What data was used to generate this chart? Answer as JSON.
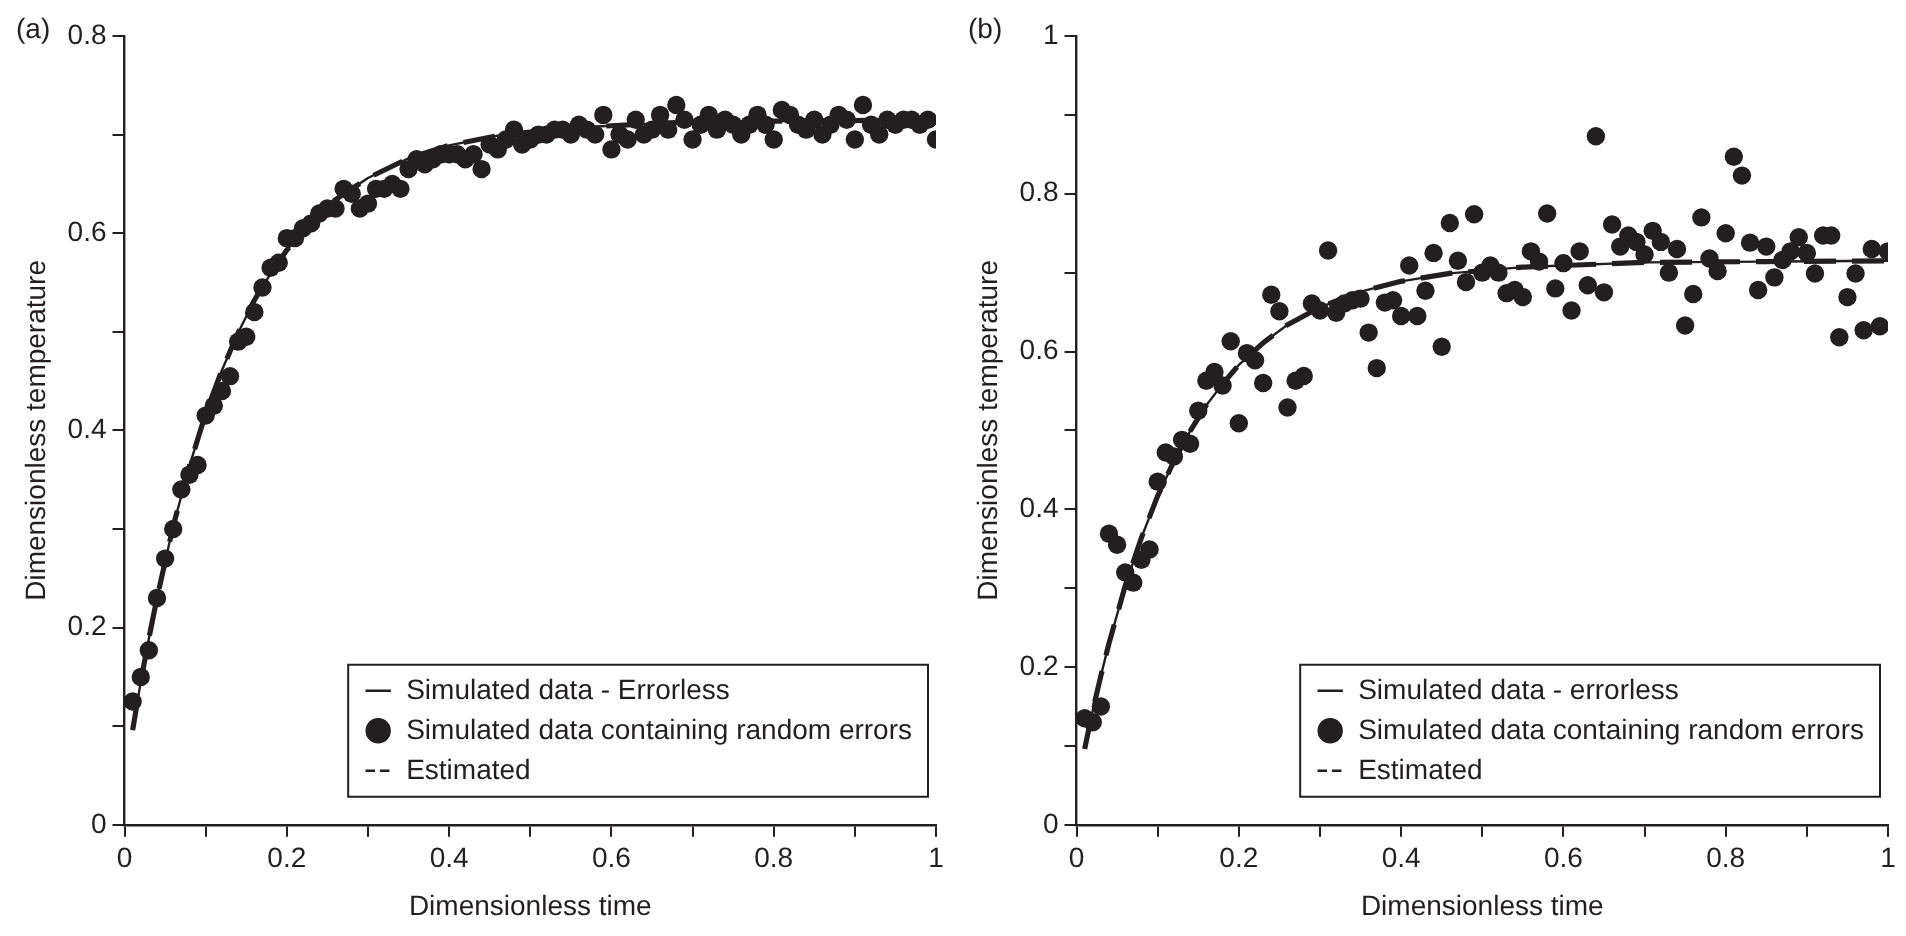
{
  "chart_data": [
    {
      "type": "line",
      "title": "(a)",
      "xlabel": "Dimensionless time",
      "ylabel": "Dimensionless temperature",
      "xlim": [
        0,
        1
      ],
      "ylim": [
        0,
        0.8
      ],
      "xticks": [
        0,
        {
          "value": 0.1,
          "label": null
        },
        0.2,
        {
          "value": 0.3,
          "label": null
        },
        0.4,
        {
          "value": 0.5,
          "label": null
        },
        0.6,
        {
          "value": 0.7,
          "label": null
        },
        0.8,
        {
          "value": 0.9,
          "label": null
        },
        1
      ],
      "yticks": [
        0,
        {
          "value": 0.1,
          "label": null
        },
        0.2,
        {
          "value": 0.3,
          "label": null
        },
        0.4,
        {
          "value": 0.5,
          "label": null
        },
        0.6,
        {
          "value": 0.7,
          "label": null
        },
        0.8
      ],
      "legend": "bottom right",
      "series": [
        {
          "name": "Simulated data - Errorless",
          "type": "line",
          "line_style": "solid",
          "color": "#231f20",
          "x": [
            0.01,
            0.02,
            0.03,
            0.04,
            0.06,
            0.08,
            0.1,
            0.12,
            0.14,
            0.16,
            0.18,
            0.2,
            0.23,
            0.26,
            0.3,
            0.35,
            0.4,
            0.46,
            0.55,
            0.7,
            0.85,
            1
          ],
          "values": [
            0.096,
            0.145,
            0.189,
            0.23,
            0.303,
            0.364,
            0.417,
            0.461,
            0.499,
            0.532,
            0.559,
            0.583,
            0.611,
            0.634,
            0.656,
            0.676,
            0.689,
            0.699,
            0.707,
            0.713,
            0.714,
            0.715
          ]
        },
        {
          "name": "Simulated data containing random errors",
          "type": "scatter",
          "marker": "circle",
          "color": "#231f20",
          "x": [
            0.01,
            0.02,
            0.03,
            0.04,
            0.05,
            0.06,
            0.07,
            0.08,
            0.09,
            0.1,
            0.11,
            0.12,
            0.13,
            0.14,
            0.15,
            0.16,
            0.17,
            0.18,
            0.19,
            0.2,
            0.21,
            0.22,
            0.23,
            0.24,
            0.25,
            0.26,
            0.27,
            0.28,
            0.29,
            0.3,
            0.31,
            0.32,
            0.33,
            0.34,
            0.35,
            0.36,
            0.37,
            0.38,
            0.39,
            0.4,
            0.41,
            0.42,
            0.43,
            0.44,
            0.45,
            0.46,
            0.47,
            0.48,
            0.49,
            0.5,
            0.51,
            0.52,
            0.53,
            0.54,
            0.55,
            0.56,
            0.57,
            0.58,
            0.59,
            0.6,
            0.61,
            0.62,
            0.63,
            0.64,
            0.65,
            0.66,
            0.67,
            0.68,
            0.69,
            0.7,
            0.71,
            0.72,
            0.73,
            0.74,
            0.75,
            0.76,
            0.77,
            0.78,
            0.79,
            0.8,
            0.81,
            0.82,
            0.83,
            0.84,
            0.85,
            0.86,
            0.87,
            0.88,
            0.89,
            0.9,
            0.91,
            0.92,
            0.93,
            0.94,
            0.95,
            0.96,
            0.97,
            0.98,
            0.99,
            1
          ],
          "values": [
            0.125,
            0.15,
            0.177,
            0.23,
            0.27,
            0.3,
            0.34,
            0.355,
            0.365,
            0.415,
            0.425,
            0.44,
            0.455,
            0.49,
            0.495,
            0.52,
            0.545,
            0.565,
            0.57,
            0.595,
            0.595,
            0.605,
            0.61,
            0.62,
            0.625,
            0.625,
            0.645,
            0.64,
            0.625,
            0.63,
            0.645,
            0.645,
            0.65,
            0.645,
            0.665,
            0.675,
            0.67,
            0.675,
            0.68,
            0.68,
            0.68,
            0.675,
            0.68,
            0.665,
            0.69,
            0.685,
            0.695,
            0.705,
            0.69,
            0.695,
            0.7,
            0.7,
            0.705,
            0.705,
            0.7,
            0.71,
            0.705,
            0.7,
            0.72,
            0.685,
            0.7,
            0.695,
            0.715,
            0.7,
            0.705,
            0.72,
            0.705,
            0.73,
            0.715,
            0.695,
            0.71,
            0.72,
            0.705,
            0.715,
            0.71,
            0.7,
            0.71,
            0.72,
            0.71,
            0.695,
            0.725,
            0.72,
            0.71,
            0.705,
            0.715,
            0.7,
            0.71,
            0.72,
            0.715,
            0.695,
            0.73,
            0.71,
            0.7,
            0.715,
            0.71,
            0.715,
            0.715,
            0.71,
            0.715,
            0.695
          ]
        },
        {
          "name": "Estimated",
          "type": "line",
          "line_style": "dashed",
          "color": "#231f20",
          "x": [
            0.01,
            0.02,
            0.03,
            0.04,
            0.06,
            0.08,
            0.1,
            0.12,
            0.14,
            0.16,
            0.18,
            0.2,
            0.23,
            0.26,
            0.3,
            0.35,
            0.4,
            0.46,
            0.55,
            0.7,
            0.85,
            1
          ],
          "values": [
            0.096,
            0.145,
            0.189,
            0.23,
            0.303,
            0.364,
            0.417,
            0.461,
            0.499,
            0.532,
            0.559,
            0.583,
            0.611,
            0.634,
            0.656,
            0.676,
            0.689,
            0.699,
            0.707,
            0.713,
            0.714,
            0.715
          ]
        }
      ]
    },
    {
      "type": "line",
      "title": "(b)",
      "xlabel": "Dimensionless time",
      "ylabel": "Dimensionless temperature",
      "xlim": [
        0,
        1
      ],
      "ylim": [
        0,
        1
      ],
      "xticks": [
        0,
        {
          "value": 0.1,
          "label": null
        },
        0.2,
        {
          "value": 0.3,
          "label": null
        },
        0.4,
        {
          "value": 0.5,
          "label": null
        },
        0.6,
        {
          "value": 0.7,
          "label": null
        },
        0.8,
        {
          "value": 0.9,
          "label": null
        },
        1
      ],
      "yticks": [
        0,
        {
          "value": 0.1,
          "label": null
        },
        0.2,
        {
          "value": 0.3,
          "label": null
        },
        0.4,
        {
          "value": 0.5,
          "label": null
        },
        0.6,
        {
          "value": 0.7,
          "label": null
        },
        0.8,
        {
          "value": 0.9,
          "label": null
        },
        1
      ],
      "legend": "bottom right",
      "series": [
        {
          "name": "Simulated data - errorless",
          "type": "line",
          "line_style": "solid",
          "color": "#231f20",
          "x": [
            0.01,
            0.02,
            0.03,
            0.04,
            0.06,
            0.08,
            0.1,
            0.12,
            0.14,
            0.16,
            0.18,
            0.2,
            0.23,
            0.26,
            0.3,
            0.35,
            0.4,
            0.46,
            0.55,
            0.7,
            0.85,
            1
          ],
          "values": [
            0.096,
            0.145,
            0.189,
            0.23,
            0.303,
            0.364,
            0.417,
            0.461,
            0.499,
            0.532,
            0.559,
            0.583,
            0.611,
            0.634,
            0.656,
            0.676,
            0.689,
            0.699,
            0.707,
            0.713,
            0.714,
            0.715
          ]
        },
        {
          "name": "Simulated data containing random errors",
          "type": "scatter",
          "marker": "circle",
          "color": "#231f20",
          "x": [
            0.01,
            0.02,
            0.03,
            0.04,
            0.05,
            0.06,
            0.07,
            0.08,
            0.09,
            0.1,
            0.11,
            0.12,
            0.13,
            0.14,
            0.15,
            0.16,
            0.17,
            0.18,
            0.19,
            0.2,
            0.21,
            0.22,
            0.23,
            0.24,
            0.25,
            0.26,
            0.27,
            0.28,
            0.29,
            0.3,
            0.31,
            0.32,
            0.33,
            0.34,
            0.35,
            0.36,
            0.37,
            0.38,
            0.39,
            0.4,
            0.41,
            0.42,
            0.43,
            0.44,
            0.45,
            0.46,
            0.47,
            0.48,
            0.49,
            0.5,
            0.51,
            0.52,
            0.53,
            0.54,
            0.55,
            0.56,
            0.57,
            0.58,
            0.59,
            0.6,
            0.61,
            0.62,
            0.63,
            0.64,
            0.65,
            0.66,
            0.67,
            0.68,
            0.69,
            0.7,
            0.71,
            0.72,
            0.73,
            0.74,
            0.75,
            0.76,
            0.77,
            0.78,
            0.79,
            0.8,
            0.81,
            0.82,
            0.83,
            0.84,
            0.85,
            0.86,
            0.87,
            0.88,
            0.89,
            0.9,
            0.91,
            0.92,
            0.93,
            0.94,
            0.95,
            0.96,
            0.97,
            0.98,
            0.99,
            1
          ],
          "values": [
            0.135,
            0.13,
            0.15,
            0.369,
            0.355,
            0.32,
            0.307,
            0.336,
            0.349,
            0.435,
            0.472,
            0.467,
            0.488,
            0.483,
            0.525,
            0.563,
            0.574,
            0.557,
            0.613,
            0.509,
            0.598,
            0.589,
            0.56,
            0.672,
            0.651,
            0.529,
            0.563,
            0.569,
            0.661,
            0.652,
            0.728,
            0.649,
            0.661,
            0.665,
            0.667,
            0.624,
            0.579,
            0.662,
            0.665,
            0.645,
            0.709,
            0.645,
            0.677,
            0.725,
            0.606,
            0.763,
            0.715,
            0.688,
            0.774,
            0.7,
            0.709,
            0.7,
            0.674,
            0.678,
            0.669,
            0.727,
            0.714,
            0.775,
            0.68,
            0.712,
            0.652,
            0.727,
            0.684,
            0.873,
            0.675,
            0.761,
            0.733,
            0.747,
            0.739,
            0.723,
            0.753,
            0.739,
            0.7,
            0.73,
            0.633,
            0.673,
            0.77,
            0.718,
            0.702,
            0.75,
            0.847,
            0.823,
            0.738,
            0.678,
            0.733,
            0.694,
            0.716,
            0.727,
            0.745,
            0.725,
            0.699,
            0.747,
            0.747,
            0.618,
            0.669,
            0.699,
            0.627,
            0.73,
            0.632,
            0.727
          ]
        },
        {
          "name": "Estimated",
          "type": "line",
          "line_style": "dashed",
          "color": "#231f20",
          "x": [
            0.01,
            0.02,
            0.03,
            0.04,
            0.06,
            0.08,
            0.1,
            0.12,
            0.14,
            0.16,
            0.18,
            0.2,
            0.23,
            0.26,
            0.3,
            0.35,
            0.4,
            0.46,
            0.55,
            0.7,
            0.85,
            1
          ],
          "values": [
            0.096,
            0.145,
            0.189,
            0.23,
            0.303,
            0.364,
            0.417,
            0.461,
            0.499,
            0.532,
            0.559,
            0.583,
            0.611,
            0.634,
            0.656,
            0.676,
            0.689,
            0.699,
            0.707,
            0.713,
            0.714,
            0.715
          ]
        }
      ]
    }
  ]
}
